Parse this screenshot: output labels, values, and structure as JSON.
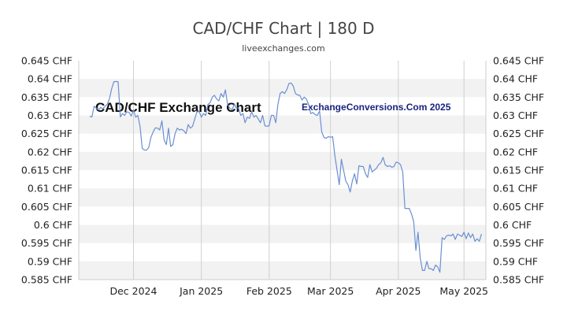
{
  "header": {
    "title": "CAD/CHF Chart | 180 D",
    "subtitle": "liveexchanges.com"
  },
  "watermarks": {
    "left": "CAD/CHF Exchange Chart",
    "right": "ExchangeConversions.Com 2025"
  },
  "colors": {
    "line": "#6b8fd4",
    "band": "#f2f2f2",
    "grid": "#d0d0d0"
  },
  "chart_data": {
    "type": "line",
    "title": "CAD/CHF Chart | 180 D",
    "xlabel": "",
    "ylabel": "",
    "ylim": [
      0.585,
      0.645
    ],
    "grid": true,
    "y_ticks": [
      "0.645 CHF",
      "0.64 CHF",
      "0.635 CHF",
      "0.63 CHF",
      "0.625 CHF",
      "0.62 CHF",
      "0.615 CHF",
      "0.61 CHF",
      "0.605 CHF",
      "0.6 CHF",
      "0.595 CHF",
      "0.59 CHF",
      "0.585 CHF"
    ],
    "y_tick_values": [
      0.645,
      0.64,
      0.635,
      0.63,
      0.625,
      0.62,
      0.615,
      0.61,
      0.605,
      0.6,
      0.595,
      0.59,
      0.585
    ],
    "x_ticks": [
      "Dec 2024",
      "Jan 2025",
      "Feb 2025",
      "Mar 2025",
      "Apr 2025",
      "May 2025"
    ],
    "x_tick_days": [
      25,
      56,
      87,
      115,
      146,
      176
    ],
    "x_range_days": [
      0,
      186
    ],
    "series": [
      {
        "values": [
          [
            5,
            0.6297
          ],
          [
            6,
            0.6296
          ],
          [
            7,
            0.6325
          ],
          [
            8,
            0.632
          ],
          [
            9,
            0.6315
          ],
          [
            10,
            0.6322
          ],
          [
            11,
            0.6318
          ],
          [
            12,
            0.6325
          ],
          [
            13,
            0.633
          ],
          [
            14,
            0.6345
          ],
          [
            15,
            0.6372
          ],
          [
            16,
            0.6392
          ],
          [
            17,
            0.6393
          ],
          [
            18,
            0.6392
          ],
          [
            19,
            0.6296
          ],
          [
            20,
            0.6305
          ],
          [
            21,
            0.63
          ],
          [
            22,
            0.631
          ],
          [
            23,
            0.6308
          ],
          [
            24,
            0.6298
          ],
          [
            25,
            0.6315
          ],
          [
            26,
            0.6295
          ],
          [
            27,
            0.63
          ],
          [
            28,
            0.627
          ],
          [
            29,
            0.621
          ],
          [
            30,
            0.6205
          ],
          [
            31,
            0.6205
          ],
          [
            32,
            0.6212
          ],
          [
            33,
            0.624
          ],
          [
            34,
            0.6255
          ],
          [
            35,
            0.6266
          ],
          [
            36,
            0.6265
          ],
          [
            37,
            0.626
          ],
          [
            38,
            0.6285
          ],
          [
            39,
            0.6233
          ],
          [
            40,
            0.622
          ],
          [
            41,
            0.6265
          ],
          [
            42,
            0.6215
          ],
          [
            43,
            0.622
          ],
          [
            44,
            0.625
          ],
          [
            45,
            0.6265
          ],
          [
            46,
            0.626
          ],
          [
            47,
            0.6262
          ],
          [
            48,
            0.6258
          ],
          [
            49,
            0.625
          ],
          [
            50,
            0.6275
          ],
          [
            51,
            0.6265
          ],
          [
            52,
            0.627
          ],
          [
            53,
            0.629
          ],
          [
            54,
            0.631
          ],
          [
            55,
            0.631
          ],
          [
            56,
            0.6295
          ],
          [
            57,
            0.6305
          ],
          [
            58,
            0.63
          ],
          [
            59,
            0.633
          ],
          [
            60,
            0.6335
          ],
          [
            61,
            0.635
          ],
          [
            62,
            0.6355
          ],
          [
            63,
            0.6345
          ],
          [
            64,
            0.634
          ],
          [
            65,
            0.636
          ],
          [
            66,
            0.635
          ],
          [
            67,
            0.637
          ],
          [
            68,
            0.633
          ],
          [
            69,
            0.632
          ],
          [
            70,
            0.6315
          ],
          [
            71,
            0.633
          ],
          [
            72,
            0.632
          ],
          [
            73,
            0.632
          ],
          [
            74,
            0.63
          ],
          [
            75,
            0.6305
          ],
          [
            76,
            0.628
          ],
          [
            77,
            0.6295
          ],
          [
            78,
            0.6292
          ],
          [
            79,
            0.631
          ],
          [
            80,
            0.6295
          ],
          [
            81,
            0.63
          ],
          [
            82,
            0.629
          ],
          [
            83,
            0.628
          ],
          [
            84,
            0.63
          ],
          [
            85,
            0.6272
          ],
          [
            86,
            0.627
          ],
          [
            87,
            0.6272
          ],
          [
            88,
            0.63
          ],
          [
            89,
            0.63
          ],
          [
            90,
            0.628
          ],
          [
            91,
            0.633
          ],
          [
            92,
            0.636
          ],
          [
            93,
            0.6365
          ],
          [
            94,
            0.636
          ],
          [
            95,
            0.637
          ],
          [
            96,
            0.6387
          ],
          [
            97,
            0.6389
          ],
          [
            98,
            0.638
          ],
          [
            99,
            0.636
          ],
          [
            100,
            0.6356
          ],
          [
            101,
            0.6355
          ],
          [
            102,
            0.6342
          ],
          [
            103,
            0.635
          ],
          [
            104,
            0.6345
          ],
          [
            105,
            0.633
          ],
          [
            106,
            0.6305
          ],
          [
            107,
            0.6308
          ],
          [
            108,
            0.6302
          ],
          [
            109,
            0.63
          ],
          [
            110,
            0.6312
          ],
          [
            111,
            0.6255
          ],
          [
            112,
            0.624
          ],
          [
            113,
            0.6237
          ],
          [
            114,
            0.6242
          ],
          [
            115,
            0.624
          ],
          [
            116,
            0.6242
          ],
          [
            117,
            0.619
          ],
          [
            118,
            0.615
          ],
          [
            119,
            0.611
          ],
          [
            120,
            0.618
          ],
          [
            121,
            0.615
          ],
          [
            122,
            0.612
          ],
          [
            123,
            0.611
          ],
          [
            124,
            0.609
          ],
          [
            125,
            0.612
          ],
          [
            126,
            0.614
          ],
          [
            127,
            0.6112
          ],
          [
            128,
            0.6162
          ],
          [
            129,
            0.616
          ],
          [
            130,
            0.616
          ],
          [
            131,
            0.614
          ],
          [
            132,
            0.613
          ],
          [
            133,
            0.6165
          ],
          [
            134,
            0.6145
          ],
          [
            135,
            0.615
          ],
          [
            136,
            0.6155
          ],
          [
            137,
            0.6165
          ],
          [
            138,
            0.617
          ],
          [
            139,
            0.6185
          ],
          [
            140,
            0.6165
          ],
          [
            141,
            0.616
          ],
          [
            142,
            0.6162
          ],
          [
            143,
            0.6158
          ],
          [
            144,
            0.616
          ],
          [
            145,
            0.6172
          ],
          [
            146,
            0.617
          ],
          [
            147,
            0.6165
          ],
          [
            148,
            0.6145
          ],
          [
            149,
            0.6045
          ],
          [
            150,
            0.6045
          ],
          [
            151,
            0.6045
          ],
          [
            152,
            0.603
          ],
          [
            153,
            0.601
          ],
          [
            154,
            0.593
          ],
          [
            155,
            0.598
          ],
          [
            156,
            0.591
          ],
          [
            157,
            0.5875
          ],
          [
            158,
            0.5875
          ],
          [
            159,
            0.59
          ],
          [
            160,
            0.588
          ],
          [
            161,
            0.588
          ],
          [
            162,
            0.5875
          ],
          [
            163,
            0.589
          ],
          [
            164,
            0.5885
          ],
          [
            165,
            0.587
          ],
          [
            166,
            0.5965
          ],
          [
            167,
            0.596
          ],
          [
            168,
            0.597
          ],
          [
            169,
            0.5972
          ],
          [
            170,
            0.597
          ],
          [
            171,
            0.5975
          ],
          [
            172,
            0.596
          ],
          [
            173,
            0.5975
          ],
          [
            174,
            0.5972
          ],
          [
            175,
            0.5968
          ],
          [
            176,
            0.598
          ],
          [
            177,
            0.5962
          ],
          [
            178,
            0.5978
          ],
          [
            179,
            0.5965
          ],
          [
            180,
            0.5975
          ],
          [
            181,
            0.5955
          ],
          [
            182,
            0.5962
          ],
          [
            183,
            0.5955
          ],
          [
            184,
            0.5975
          ]
        ]
      }
    ]
  }
}
